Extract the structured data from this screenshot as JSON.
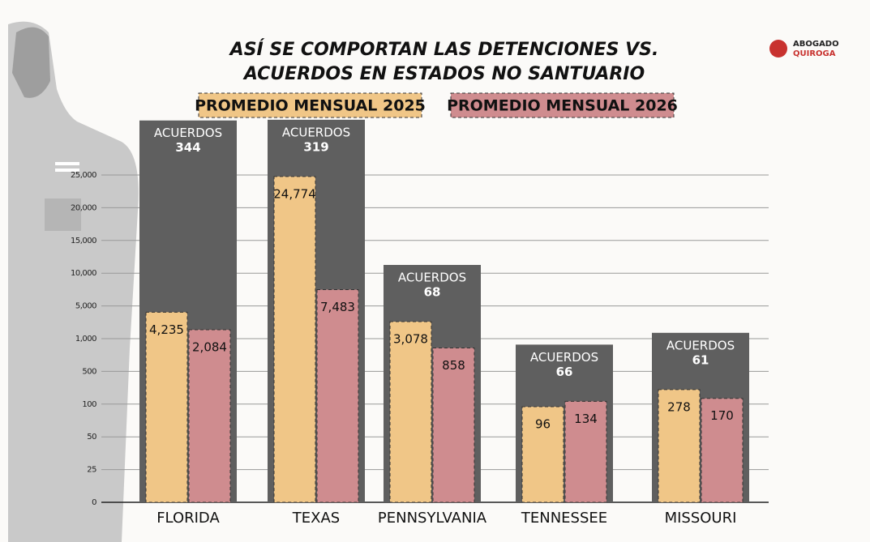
{
  "chart_data": {
    "type": "grouped-bar",
    "title": [
      "ASÍ SE COMPORTAN LAS DETENCIONES VS.",
      "ACUERDOS EN ESTADOS NO SANTUARIO"
    ],
    "logo": [
      "ABOGADO",
      "QUIROGA"
    ],
    "categories": [
      "FLORIDA",
      "TEXAS",
      "PENNSYLVANIA",
      "TENNESSEE",
      "MISSOURI"
    ],
    "series": [
      {
        "name": "PROMEDIO MENSUAL 2025",
        "color": "#f0c687",
        "values": [
          4235,
          24774,
          3078,
          96,
          278
        ],
        "value_labels": [
          "4,235",
          "24,774",
          "3,078",
          "96",
          "278"
        ]
      },
      {
        "name": "PROMEDIO MENSUAL 2026",
        "color": "#cf8c8f",
        "values": [
          2084,
          7483,
          858,
          134,
          170
        ],
        "value_labels": [
          "2,084",
          "7,483",
          "858",
          "134",
          "170"
        ]
      }
    ],
    "panel_label": "ACUERDOS",
    "acuerdos": [
      344,
      319,
      68,
      66,
      61
    ],
    "panel_color": "#5f5f5f",
    "ylim": [
      0,
      25000
    ],
    "yticks": [
      0,
      25,
      50,
      100,
      500,
      {
        "value": 1000,
        "label": "1,000"
      },
      {
        "value": 5000,
        "label": "5,000"
      },
      {
        "value": 10000,
        "label": "10,000"
      },
      {
        "value": 15000,
        "label": "15,000"
      },
      {
        "value": 20000,
        "label": "20,000"
      },
      {
        "value": 25000,
        "label": "25,000"
      }
    ],
    "grid": true
  }
}
